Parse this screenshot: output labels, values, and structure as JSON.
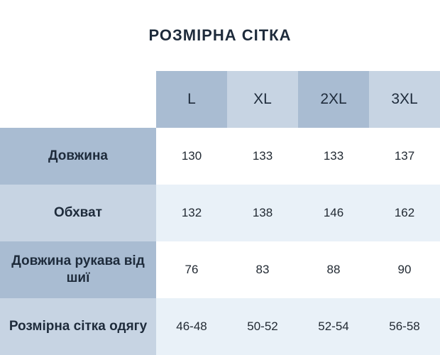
{
  "title": "РОЗМІРНА СІТКА",
  "table": {
    "columns": [
      "L",
      "XL",
      "2XL",
      "3XL"
    ],
    "rows": [
      {
        "label": "Довжина",
        "values": [
          "130",
          "133",
          "133",
          "137"
        ]
      },
      {
        "label": "Обхват",
        "values": [
          "132",
          "138",
          "146",
          "162"
        ]
      },
      {
        "label": "Довжина рукава від шиї",
        "values": [
          "76",
          "83",
          "88",
          "90"
        ]
      },
      {
        "label": "Розмірна сітка одягу",
        "values": [
          "46-48",
          "50-52",
          "52-54",
          "56-58"
        ]
      }
    ]
  },
  "colors": {
    "header_medium": "#a9bcd2",
    "header_light": "#c7d4e3",
    "row_white": "#ffffff",
    "row_tint": "#e9f1f8",
    "title_text": "#1e2b3b",
    "value_text": "#222a33"
  },
  "chart_data": {
    "type": "table",
    "title": "РОЗМІРНА СІТКА",
    "columns": [
      "",
      "L",
      "XL",
      "2XL",
      "3XL"
    ],
    "rows": [
      [
        "Довжина",
        130,
        133,
        133,
        137
      ],
      [
        "Обхват",
        132,
        138,
        146,
        162
      ],
      [
        "Довжина рукава від шиї",
        76,
        83,
        88,
        90
      ],
      [
        "Розмірна сітка одягу",
        "46-48",
        "50-52",
        "52-54",
        "56-58"
      ]
    ]
  }
}
